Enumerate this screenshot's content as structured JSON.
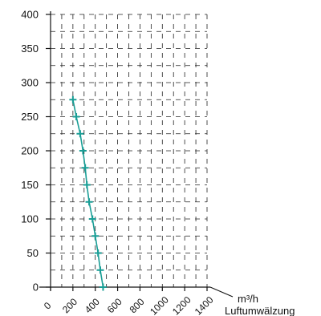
{
  "chart_data": {
    "type": "line",
    "title": "",
    "xlabel": "Luftumwälzung",
    "xunit": "m³/h",
    "ylabel": "",
    "xlim": [
      0,
      1400
    ],
    "ylim": [
      0,
      400
    ],
    "x_ticks": [
      0,
      200,
      400,
      600,
      800,
      1000,
      1200,
      1400
    ],
    "y_ticks": [
      0,
      50,
      100,
      150,
      200,
      250,
      300,
      350,
      400
    ],
    "grid": true,
    "legend": "none",
    "series": [
      {
        "color": "#1a9e96",
        "marker": "plus",
        "x": [
          200,
          230,
          265,
          290,
          310,
          325,
          345,
          375,
          400,
          425,
          445,
          470
        ],
        "y": [
          275,
          250,
          225,
          200,
          175,
          150,
          125,
          100,
          75,
          50,
          25,
          0
        ]
      }
    ]
  }
}
